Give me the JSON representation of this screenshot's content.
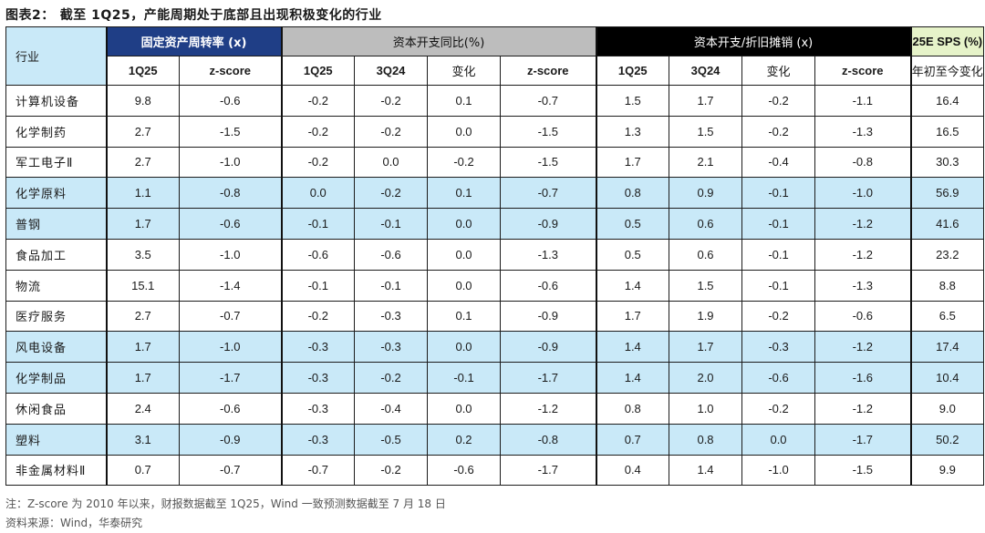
{
  "title": {
    "figure_label": "图表2：",
    "text": "截至 1Q25，产能周期处于底部且出现积极变化的行业"
  },
  "table": {
    "industry_header": "行业",
    "groups": [
      "固定资产周转率 (x)",
      "资本开支同比(%)",
      "资本开支/折旧摊销 (x)",
      "25E SPS (%)"
    ],
    "subheaders": [
      "1Q25",
      "z-score",
      "1Q25",
      "3Q24",
      "变化",
      "z-score",
      "1Q25",
      "3Q24",
      "变化",
      "z-score",
      "年初至今变化"
    ],
    "rows": [
      {
        "name": "计算机设备",
        "highlight": false,
        "values": [
          "9.8",
          "-0.6",
          "-0.2",
          "-0.2",
          "0.1",
          "-0.7",
          "1.5",
          "1.7",
          "-0.2",
          "-1.1",
          "16.4"
        ]
      },
      {
        "name": "化学制药",
        "highlight": false,
        "values": [
          "2.7",
          "-1.5",
          "-0.2",
          "-0.2",
          "0.0",
          "-1.5",
          "1.3",
          "1.5",
          "-0.2",
          "-1.3",
          "16.5"
        ]
      },
      {
        "name": "军工电子Ⅱ",
        "highlight": false,
        "values": [
          "2.7",
          "-1.0",
          "-0.2",
          "0.0",
          "-0.2",
          "-1.5",
          "1.7",
          "2.1",
          "-0.4",
          "-0.8",
          "30.3"
        ]
      },
      {
        "name": "化学原料",
        "highlight": true,
        "values": [
          "1.1",
          "-0.8",
          "0.0",
          "-0.2",
          "0.1",
          "-0.7",
          "0.8",
          "0.9",
          "-0.1",
          "-1.0",
          "56.9"
        ]
      },
      {
        "name": "普钢",
        "highlight": true,
        "values": [
          "1.7",
          "-0.6",
          "-0.1",
          "-0.1",
          "0.0",
          "-0.9",
          "0.5",
          "0.6",
          "-0.1",
          "-1.2",
          "41.6"
        ]
      },
      {
        "name": "食品加工",
        "highlight": false,
        "values": [
          "3.5",
          "-1.0",
          "-0.6",
          "-0.6",
          "0.0",
          "-1.3",
          "0.5",
          "0.6",
          "-0.1",
          "-1.2",
          "23.2"
        ]
      },
      {
        "name": "物流",
        "highlight": false,
        "values": [
          "15.1",
          "-1.4",
          "-0.1",
          "-0.1",
          "0.0",
          "-0.6",
          "1.4",
          "1.5",
          "-0.1",
          "-1.3",
          "8.8"
        ]
      },
      {
        "name": "医疗服务",
        "highlight": false,
        "values": [
          "2.7",
          "-0.7",
          "-0.2",
          "-0.3",
          "0.1",
          "-0.9",
          "1.7",
          "1.9",
          "-0.2",
          "-0.6",
          "6.5"
        ]
      },
      {
        "name": "风电设备",
        "highlight": true,
        "values": [
          "1.7",
          "-1.0",
          "-0.3",
          "-0.3",
          "0.0",
          "-0.9",
          "1.4",
          "1.7",
          "-0.3",
          "-1.2",
          "17.4"
        ]
      },
      {
        "name": "化学制品",
        "highlight": true,
        "values": [
          "1.7",
          "-1.7",
          "-0.3",
          "-0.2",
          "-0.1",
          "-1.7",
          "1.4",
          "2.0",
          "-0.6",
          "-1.6",
          "10.4"
        ]
      },
      {
        "name": "休闲食品",
        "highlight": false,
        "values": [
          "2.4",
          "-0.6",
          "-0.3",
          "-0.4",
          "0.0",
          "-1.2",
          "0.8",
          "1.0",
          "-0.2",
          "-1.2",
          "9.0"
        ]
      },
      {
        "name": "塑料",
        "highlight": true,
        "values": [
          "3.1",
          "-0.9",
          "-0.3",
          "-0.5",
          "0.2",
          "-0.8",
          "0.7",
          "0.8",
          "0.0",
          "-1.7",
          "50.2"
        ]
      },
      {
        "name": "非金属材料Ⅱ",
        "highlight": false,
        "values": [
          "0.7",
          "-0.7",
          "-0.7",
          "-0.2",
          "-0.6",
          "-1.7",
          "0.4",
          "1.4",
          "-1.0",
          "-1.5",
          "9.9"
        ]
      }
    ]
  },
  "footer": {
    "note": "注：Z-score 为 2010 年以来，财报数据截至 1Q25，Wind 一致预测数据截至 7 月 18 日",
    "source": "资料来源：Wind，华泰研究"
  },
  "colors": {
    "group1_bg": "#1f3e86",
    "group2_bg": "#bdbdbd",
    "group3_bg": "#000000",
    "group4_bg": "#e6f3c9",
    "highlight_row": "#c9e9f8"
  }
}
